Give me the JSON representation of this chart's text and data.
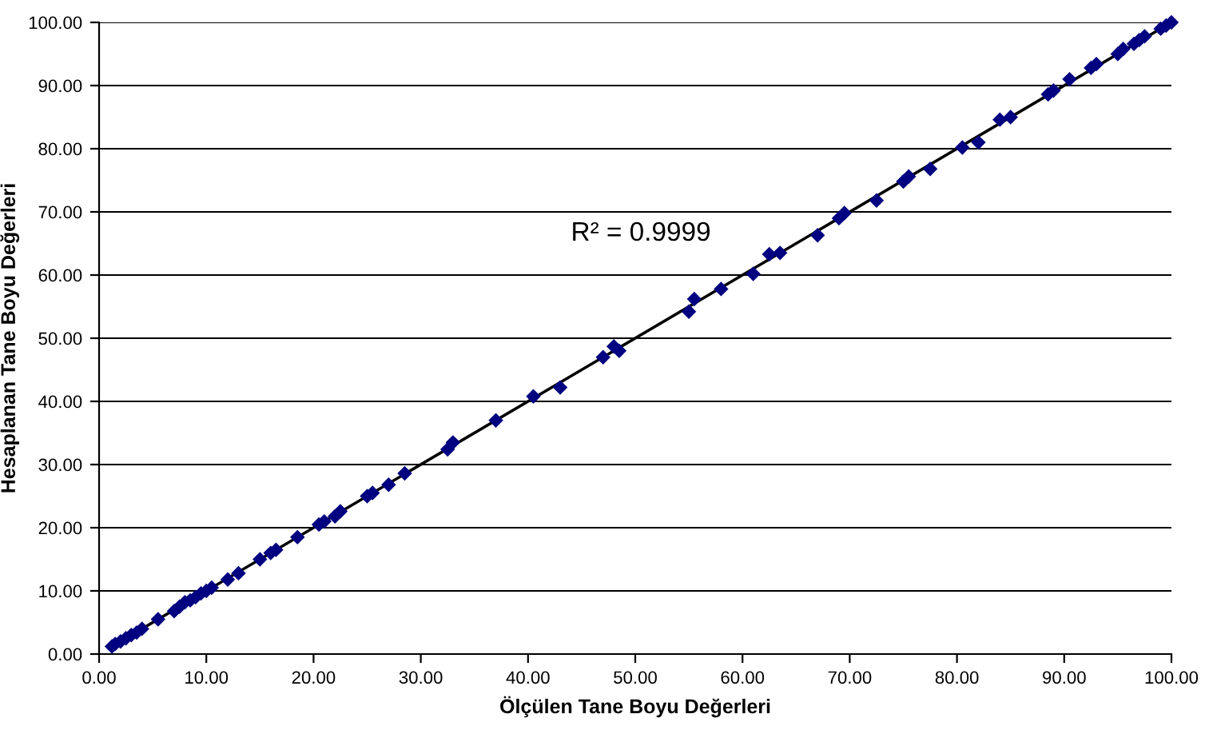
{
  "chart_data": {
    "type": "scatter",
    "xlabel": "Ölçülen Tane Boyu Değerleri",
    "ylabel": "Hesaplanan Tane Boyu Değerleri",
    "annotations": [
      "R² = 0.9999"
    ],
    "series": [
      {
        "color": "#000080",
        "marker": "diamond",
        "x": [
          1.2,
          1.5,
          2,
          2.5,
          3,
          3.5,
          4,
          5.5,
          7,
          7.5,
          8,
          8.5,
          9,
          9.5,
          10,
          10.5,
          12,
          13,
          15,
          16,
          16.5,
          18.5,
          20.5,
          21,
          22,
          22.5,
          25,
          25.5,
          27,
          28.5,
          32.5,
          33,
          37,
          40.5,
          43,
          47,
          48,
          48.5,
          55,
          55.5,
          58,
          61,
          62.5,
          63.5,
          67,
          69,
          69.5,
          72.5,
          75,
          75.5,
          77.5,
          80.5,
          82,
          84,
          85,
          88.5,
          89,
          90.5,
          92.5,
          93,
          95,
          95.5,
          96.5,
          97,
          97.5,
          99,
          99.5,
          100
        ],
        "values": [
          1.2,
          1.6,
          2,
          2.5,
          3,
          3.4,
          4,
          5.5,
          6.8,
          7.5,
          8.2,
          8.5,
          9,
          9.6,
          10,
          10.5,
          11.8,
          12.8,
          15,
          16,
          16.5,
          18.5,
          20.5,
          21,
          21.8,
          22.6,
          25,
          25.5,
          26.8,
          28.6,
          32.4,
          33.5,
          37,
          40.8,
          42.2,
          47,
          48.7,
          48,
          54.2,
          56.2,
          57.8,
          60.2,
          63.3,
          63.5,
          66.3,
          69,
          69.8,
          71.8,
          74.8,
          75.6,
          76.8,
          80.2,
          81,
          84.6,
          85,
          88.6,
          89.2,
          91,
          92.8,
          93.4,
          95,
          95.8,
          96.6,
          97.2,
          97.8,
          99,
          99.5,
          100
        ]
      },
      {
        "type": "line",
        "color": "#000000",
        "line_style": "solid",
        "marker": "none",
        "x": [
          1.2,
          100
        ],
        "values": [
          1.2,
          100
        ]
      }
    ],
    "xlim": [
      0,
      100
    ],
    "ylim": [
      0,
      100
    ],
    "xticks": [
      {
        "value": 0,
        "label": "0.00"
      },
      {
        "value": 10,
        "label": "10.00"
      },
      {
        "value": 20,
        "label": "20.00"
      },
      {
        "value": 30,
        "label": "30.00"
      },
      {
        "value": 40,
        "label": "40.00"
      },
      {
        "value": 50,
        "label": "50.00"
      },
      {
        "value": 60,
        "label": "60.00"
      },
      {
        "value": 70,
        "label": "70.00"
      },
      {
        "value": 80,
        "label": "80.00"
      },
      {
        "value": 90,
        "label": "90.00"
      },
      {
        "value": 100,
        "label": "100.00"
      }
    ],
    "yticks": [
      {
        "value": 0,
        "label": "0.00"
      },
      {
        "value": 10,
        "label": "10.00"
      },
      {
        "value": 20,
        "label": "20.00"
      },
      {
        "value": 30,
        "label": "30.00"
      },
      {
        "value": 40,
        "label": "40.00"
      },
      {
        "value": 50,
        "label": "50.00"
      },
      {
        "value": 60,
        "label": "60.00"
      },
      {
        "value": 70,
        "label": "70.00"
      },
      {
        "value": 80,
        "label": "80.00"
      },
      {
        "value": 90,
        "label": "90.00"
      },
      {
        "value": 100,
        "label": "100.00"
      }
    ],
    "grid": "y",
    "legend": false
  }
}
